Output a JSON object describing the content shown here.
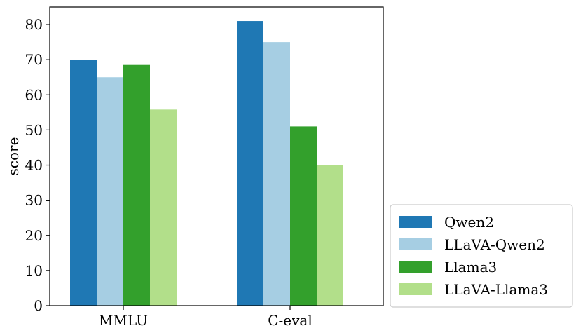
{
  "chart_data": {
    "type": "bar",
    "categories": [
      "MMLU",
      "C-eval"
    ],
    "series": [
      {
        "name": "Qwen2",
        "color": "#1f78b4",
        "values": [
          70,
          81
        ]
      },
      {
        "name": "LLaVA-Qwen2",
        "color": "#a6cee3",
        "values": [
          65,
          75
        ]
      },
      {
        "name": "Llama3",
        "color": "#33a02c",
        "values": [
          68.5,
          51
        ]
      },
      {
        "name": "LLaVA-Llama3",
        "color": "#b2df8a",
        "values": [
          55.8,
          40
        ]
      }
    ],
    "ylabel": "score",
    "xlabel": "",
    "ylim": [
      0,
      85
    ],
    "yticks": [
      0,
      10,
      20,
      30,
      40,
      50,
      60,
      70,
      80
    ],
    "legend_position": "outside-right-bottom",
    "grid": false
  }
}
